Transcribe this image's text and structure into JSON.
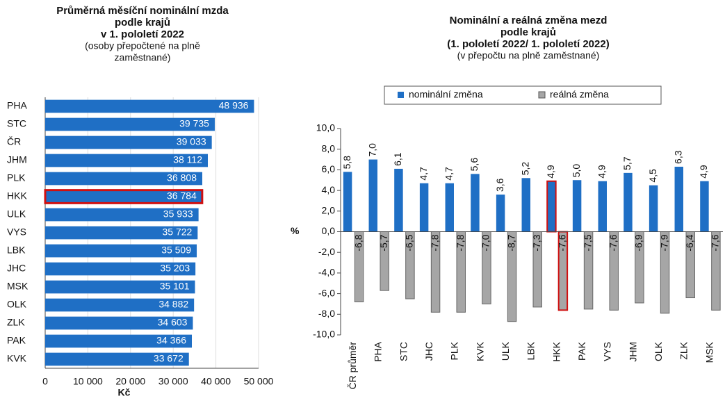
{
  "chart_data": [
    {
      "type": "hbar",
      "title": [
        "Průměrná měsíční nominální mzda",
        "podle krajů",
        "v 1. pololetí 2022"
      ],
      "subtitle": [
        "(osoby přepočtené na plně",
        "zaměstnané)"
      ],
      "categories": [
        "PHA",
        "STC",
        "ČR",
        "JHM",
        "PLK",
        "HKK",
        "ULK",
        "VYS",
        "LBK",
        "JHC",
        "MSK",
        "OLK",
        "ZLK",
        "PAK",
        "KVK"
      ],
      "values": [
        48936,
        39735,
        39033,
        38112,
        36808,
        36784,
        35933,
        35722,
        35509,
        35203,
        35101,
        34882,
        34603,
        34366,
        33672
      ],
      "value_labels": [
        "48 936",
        "39 735",
        "39 033",
        "38 112",
        "36 808",
        "36 784",
        "35 933",
        "35 722",
        "35 509",
        "35 203",
        "35 101",
        "34 882",
        "34 603",
        "34 366",
        "33 672"
      ],
      "color": "#1f6fc5",
      "highlight": "HKK",
      "highlight_color": "#d01010",
      "xlabel": "Kč",
      "xlim": [
        0,
        50000
      ],
      "xticks": [
        0,
        {
          "value": 10000,
          "label": "10 000"
        },
        {
          "value": 20000,
          "label": "20 000"
        },
        {
          "value": 30000,
          "label": "30 000"
        },
        {
          "value": 40000,
          "label": "40 000"
        },
        {
          "value": 50000,
          "label": "50 000"
        }
      ],
      "grid": true
    },
    {
      "type": "bar",
      "title": [
        "Nominální a reálná změna mezd",
        "podle krajů",
        "(1. pololetí 2022/ 1. pololetí 2022)"
      ],
      "subtitle": [
        "(v přepočtu na plně zaměstnané)"
      ],
      "ylabel": "%",
      "categories": [
        "ČR průměr",
        "PHA",
        "STC",
        "JHC",
        "PLK",
        "KVK",
        "ULK",
        "LBK",
        "HKK",
        "PAK",
        "VYS",
        "JHM",
        "OLK",
        "ZLK",
        "MSK"
      ],
      "series": [
        {
          "name": "nominální změna",
          "color": "#1f6fc5",
          "values": [
            5.8,
            7.0,
            6.1,
            4.7,
            4.7,
            5.6,
            3.6,
            5.2,
            4.9,
            5.0,
            4.9,
            5.7,
            4.5,
            6.3,
            4.9
          ],
          "value_labels": [
            "5,8",
            "7,0",
            "6,1",
            "4,7",
            "4,7",
            "5,6",
            "3,6",
            "5,2",
            "4,9",
            "5,0",
            "4,9",
            "5,7",
            "4,5",
            "6,3",
            "4,9"
          ]
        },
        {
          "name": "reálná změna",
          "color": "#a6a6a6",
          "values": [
            -6.8,
            -5.7,
            -6.5,
            -7.8,
            -7.8,
            -7.0,
            -8.7,
            -7.3,
            -7.6,
            -7.5,
            -7.6,
            -6.9,
            -7.9,
            -6.4,
            -7.6
          ],
          "value_labels": [
            "-6,8",
            "-5,7",
            "-6,5",
            "-7,8",
            "-7,8",
            "-7,0",
            "-8,7",
            "-7,3",
            "-7,6",
            "-7,5",
            "-7,6",
            "-6,9",
            "-7,9",
            "-6,4",
            "-7,6"
          ]
        }
      ],
      "highlight": "HKK",
      "highlight_color": "#d01010",
      "ylim": [
        -10,
        10
      ],
      "yticks": [
        {
          "value": 10,
          "label": "10,0"
        },
        {
          "value": 8,
          "label": "8,0"
        },
        {
          "value": 6,
          "label": "6,0"
        },
        {
          "value": 4,
          "label": "4,0"
        },
        {
          "value": 2,
          "label": "2,0"
        },
        {
          "value": 0,
          "label": "0,0"
        },
        {
          "value": -2,
          "label": "-2,0"
        },
        {
          "value": -4,
          "label": "-4,0"
        },
        {
          "value": -6,
          "label": "-6,0"
        },
        {
          "value": -8,
          "label": "-8,0"
        },
        {
          "value": -10,
          "label": "-10,0"
        }
      ],
      "legend": "top"
    }
  ]
}
